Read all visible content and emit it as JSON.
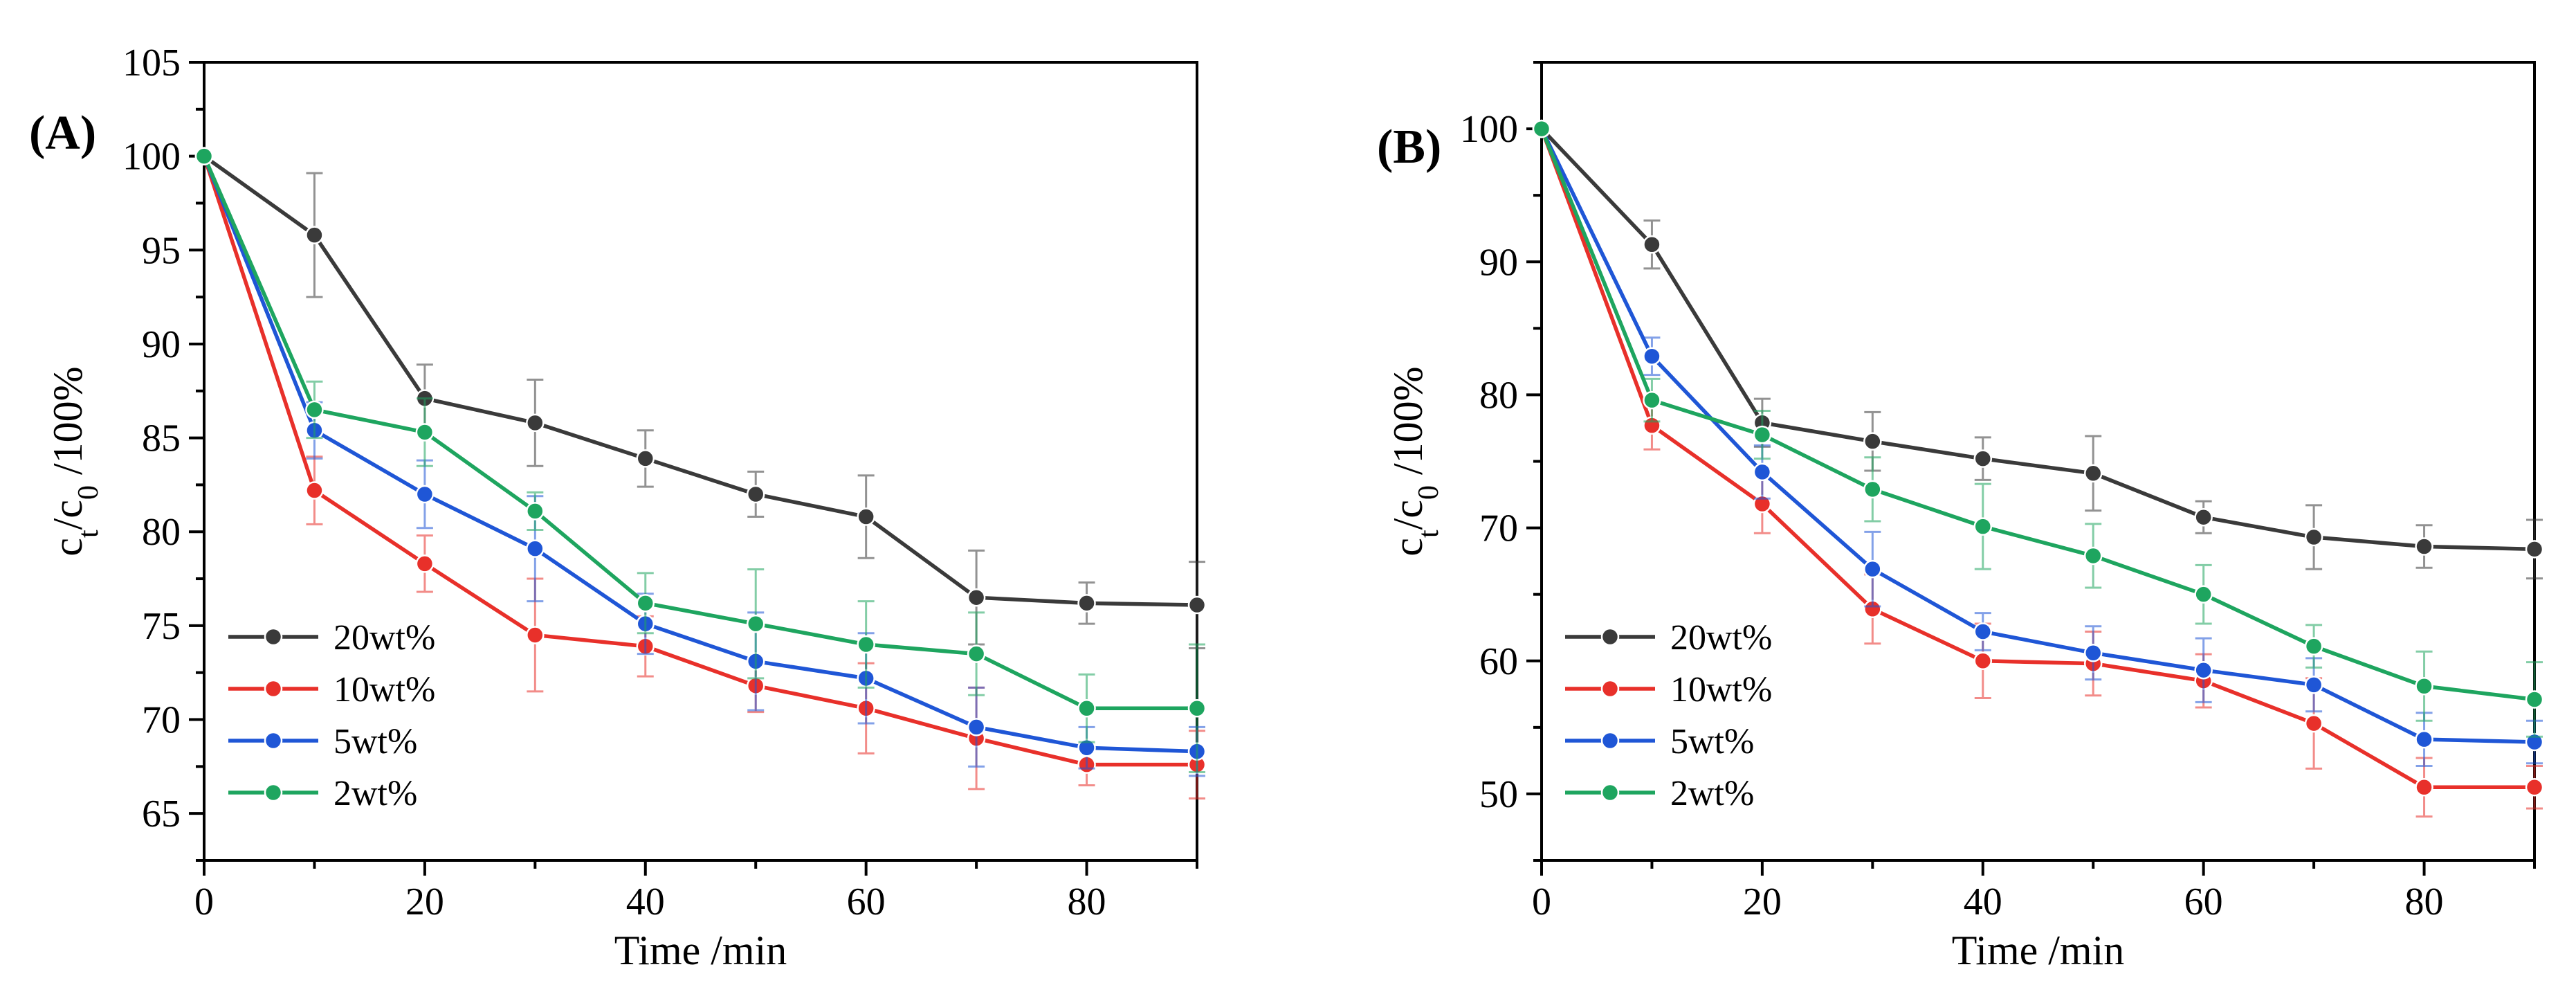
{
  "chart_data": [
    {
      "panel_label": "(A)",
      "type": "line",
      "xlabel": "Time /min",
      "ylabel": {
        "base1": "c",
        "sub1": "t",
        "sep": "/c",
        "sub2": "0",
        "tail": " /100%"
      },
      "xlim": [
        0,
        90
      ],
      "ylim": [
        62.5,
        105
      ],
      "xticks": [
        0,
        20,
        40,
        60,
        80
      ],
      "yticks": [
        65,
        70,
        75,
        80,
        85,
        90,
        95,
        100,
        105
      ],
      "x": [
        0,
        10,
        20,
        30,
        40,
        50,
        60,
        70,
        80,
        90
      ],
      "legend_position": "bottom-left",
      "series": [
        {
          "name": "20wt%",
          "color": "#3a3a3a",
          "values": [
            100,
            95.8,
            87.1,
            85.8,
            83.9,
            82.0,
            80.8,
            76.5,
            76.2,
            76.1
          ],
          "errors": [
            0,
            3.3,
            1.8,
            2.3,
            1.5,
            1.2,
            2.2,
            2.5,
            1.1,
            2.3
          ]
        },
        {
          "name": "10wt%",
          "color": "#e8302a",
          "values": [
            100,
            82.2,
            78.3,
            74.5,
            73.9,
            71.8,
            70.6,
            69.0,
            67.6,
            67.6
          ],
          "errors": [
            0,
            1.8,
            1.5,
            3.0,
            1.6,
            1.4,
            2.4,
            2.7,
            1.1,
            1.8
          ]
        },
        {
          "name": "5wt%",
          "color": "#1f56d6",
          "values": [
            100,
            85.4,
            82.0,
            79.1,
            75.1,
            73.1,
            72.2,
            69.6,
            68.5,
            68.3
          ],
          "errors": [
            0,
            1.5,
            1.8,
            2.8,
            1.6,
            2.6,
            2.4,
            2.1,
            1.1,
            1.3
          ]
        },
        {
          "name": "2wt%",
          "color": "#1ea55f",
          "values": [
            100,
            86.5,
            85.3,
            81.1,
            76.2,
            75.1,
            74.0,
            73.5,
            70.6,
            70.6
          ],
          "errors": [
            0,
            1.5,
            1.8,
            1.0,
            1.6,
            2.9,
            2.3,
            2.2,
            1.8,
            3.4
          ]
        }
      ]
    },
    {
      "panel_label": "(B)",
      "type": "line",
      "xlabel": "Time /min",
      "ylabel": {
        "base1": "c",
        "sub1": "t",
        "sep": "/c",
        "sub2": "0",
        "tail": " /100%"
      },
      "xlim": [
        0,
        90
      ],
      "ylim": [
        45,
        105
      ],
      "xticks": [
        0,
        20,
        40,
        60,
        80
      ],
      "yticks": [
        50,
        60,
        70,
        80,
        90,
        100
      ],
      "x": [
        0,
        10,
        20,
        30,
        40,
        50,
        60,
        70,
        80,
        90
      ],
      "legend_position": "bottom-left",
      "series": [
        {
          "name": "20wt%",
          "color": "#3a3a3a",
          "values": [
            100,
            91.3,
            77.9,
            76.5,
            75.2,
            74.1,
            70.8,
            69.3,
            68.6,
            68.4
          ],
          "errors": [
            0,
            1.8,
            1.8,
            2.2,
            1.6,
            2.8,
            1.2,
            2.4,
            1.6,
            2.2
          ]
        },
        {
          "name": "10wt%",
          "color": "#e8302a",
          "values": [
            100,
            77.7,
            71.8,
            63.9,
            60.0,
            59.8,
            58.5,
            55.3,
            50.5,
            50.5
          ],
          "errors": [
            0,
            1.8,
            2.2,
            2.6,
            2.8,
            2.4,
            2.0,
            3.4,
            2.2,
            1.6
          ]
        },
        {
          "name": "5wt%",
          "color": "#1f56d6",
          "values": [
            100,
            82.9,
            74.2,
            66.9,
            62.2,
            60.6,
            59.3,
            58.2,
            54.1,
            53.9
          ],
          "errors": [
            0,
            1.4,
            2.0,
            2.8,
            1.4,
            2.0,
            2.4,
            2.0,
            2.0,
            1.6
          ]
        },
        {
          "name": "2wt%",
          "color": "#1ea55f",
          "values": [
            100,
            79.6,
            77.0,
            72.9,
            70.1,
            67.9,
            65.0,
            61.1,
            58.1,
            57.1
          ],
          "errors": [
            0,
            1.6,
            1.8,
            2.4,
            3.2,
            2.4,
            2.2,
            1.6,
            2.6,
            2.8
          ]
        }
      ]
    }
  ]
}
